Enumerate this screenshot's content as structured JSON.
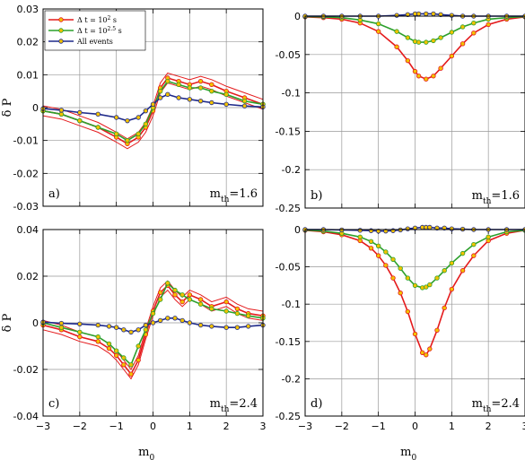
{
  "chart_data": [
    {
      "id": "a",
      "type": "line",
      "panel_label": "a)",
      "threshold_label": "m_th=1.6",
      "ylabel": "δ P",
      "xlabel": "",
      "xlim": [
        -3,
        3
      ],
      "ylim": [
        -0.03,
        0.03
      ],
      "yticks": [
        "0.03",
        "0.02",
        "0.01",
        "0",
        "-0.01",
        "-0.02",
        "-0.03"
      ],
      "xticks": [],
      "grid": true,
      "legend": {
        "position": "top-left",
        "entries": [
          {
            "label": "Δ t = 10^2 s",
            "color": "#e41a1c"
          },
          {
            "label": "Δ t = 10^2.5 s",
            "color": "#2ca02c"
          },
          {
            "label": "All events",
            "color": "#1f2a8a"
          }
        ]
      },
      "series": [
        {
          "name": "Δ t = 10^2 s",
          "color": "#e41a1c",
          "band": true,
          "x": [
            -3,
            -2.5,
            -2,
            -1.5,
            -1,
            -0.7,
            -0.4,
            -0.2,
            0,
            0.2,
            0.4,
            0.7,
            1,
            1.3,
            1.6,
            2,
            2.5,
            3
          ],
          "y": [
            -0.001,
            -0.002,
            -0.004,
            -0.006,
            -0.009,
            -0.011,
            -0.009,
            -0.006,
            -0.001,
            0.006,
            0.009,
            0.008,
            0.007,
            0.008,
            0.007,
            0.005,
            0.003,
            0.001
          ]
        },
        {
          "name": "Δ t = 10^2.5 s",
          "color": "#2ca02c",
          "band": false,
          "x": [
            -3,
            -2.5,
            -2,
            -1.5,
            -1,
            -0.7,
            -0.4,
            -0.2,
            0,
            0.2,
            0.4,
            0.7,
            1,
            1.3,
            1.6,
            2,
            2.5,
            3
          ],
          "y": [
            -0.001,
            -0.002,
            -0.004,
            -0.006,
            -0.008,
            -0.01,
            -0.008,
            -0.005,
            0,
            0.005,
            0.008,
            0.007,
            0.006,
            0.006,
            0.005,
            0.004,
            0.002,
            0.001
          ]
        },
        {
          "name": "All events",
          "color": "#1f2a8a",
          "band": false,
          "x": [
            -3,
            -2.5,
            -2,
            -1.5,
            -1,
            -0.7,
            -0.4,
            -0.2,
            0,
            0.2,
            0.4,
            0.7,
            1,
            1.3,
            1.6,
            2,
            2.5,
            3
          ],
          "y": [
            -0.0003,
            -0.0008,
            -0.0015,
            -0.002,
            -0.003,
            -0.004,
            -0.003,
            -0.001,
            0.001,
            0.003,
            0.004,
            0.003,
            0.0025,
            0.002,
            0.0015,
            0.001,
            0.0005,
            0.0002
          ]
        }
      ]
    },
    {
      "id": "b",
      "type": "line",
      "panel_label": "b)",
      "threshold_label": "m_th=1.6",
      "ylabel": "",
      "xlabel": "",
      "xlim": [
        -3,
        3
      ],
      "ylim": [
        -0.25,
        0.0
      ],
      "yticks": [
        "0",
        "-0.05",
        "-0.1",
        "-0.15",
        "-0.2",
        "-0.25"
      ],
      "xticks": [],
      "grid": true,
      "series": [
        {
          "name": "Δ t = 10^2 s",
          "color": "#e41a1c",
          "band": false,
          "x": [
            -3,
            -2.5,
            -2,
            -1.5,
            -1,
            -0.5,
            -0.2,
            0,
            0.1,
            0.3,
            0.5,
            0.7,
            1,
            1.3,
            1.6,
            2,
            2.5,
            3
          ],
          "y": [
            -0.001,
            -0.002,
            -0.004,
            -0.009,
            -0.02,
            -0.04,
            -0.058,
            -0.072,
            -0.078,
            -0.082,
            -0.078,
            -0.068,
            -0.052,
            -0.036,
            -0.022,
            -0.011,
            -0.004,
            -0.001
          ]
        },
        {
          "name": "Δ t = 10^2.5 s",
          "color": "#2ca02c",
          "band": false,
          "x": [
            -3,
            -2.5,
            -2,
            -1.5,
            -1,
            -0.5,
            -0.2,
            0,
            0.1,
            0.3,
            0.5,
            0.7,
            1,
            1.3,
            1.6,
            2,
            2.5,
            3
          ],
          "y": [
            -0.0005,
            -0.001,
            -0.002,
            -0.005,
            -0.01,
            -0.02,
            -0.028,
            -0.033,
            -0.034,
            -0.034,
            -0.032,
            -0.028,
            -0.021,
            -0.014,
            -0.009,
            -0.004,
            -0.002,
            -0.0005
          ]
        },
        {
          "name": "All events",
          "color": "#1f2a8a",
          "band": false,
          "x": [
            -3,
            -2.5,
            -2,
            -1.5,
            -1,
            -0.5,
            -0.2,
            0,
            0.1,
            0.3,
            0.5,
            0.7,
            1,
            1.3,
            1.6,
            2,
            2.5,
            3
          ],
          "y": [
            0,
            0,
            0,
            0,
            0,
            0.001,
            0.002,
            0.003,
            0.003,
            0.003,
            0.003,
            0.002,
            0.001,
            0,
            0,
            0,
            0,
            0
          ]
        }
      ]
    },
    {
      "id": "c",
      "type": "line",
      "panel_label": "c)",
      "threshold_label": "m_th=2.4",
      "ylabel": "δ P",
      "xlabel": "m_0",
      "xlim": [
        -3,
        3
      ],
      "ylim": [
        -0.04,
        0.04
      ],
      "yticks": [
        "0.04",
        "0.02",
        "0",
        "-0.02",
        "-0.04"
      ],
      "xticks": [
        "−3",
        "−2",
        "−1",
        "0",
        "1",
        "2",
        "3"
      ],
      "grid": true,
      "series": [
        {
          "name": "Δ t = 10^2 s",
          "color": "#e41a1c",
          "band": true,
          "x": [
            -3,
            -2.5,
            -2,
            -1.5,
            -1.2,
            -1,
            -0.8,
            -0.6,
            -0.4,
            -0.2,
            0,
            0.2,
            0.4,
            0.6,
            0.8,
            1,
            1.3,
            1.6,
            2,
            2.3,
            2.6,
            3
          ],
          "y": [
            -0.001,
            -0.003,
            -0.006,
            -0.008,
            -0.011,
            -0.014,
            -0.018,
            -0.022,
            -0.016,
            -0.005,
            0.005,
            0.013,
            0.016,
            0.012,
            0.009,
            0.012,
            0.01,
            0.007,
            0.009,
            0.006,
            0.004,
            0.003
          ]
        },
        {
          "name": "Δ t = 10^2.5 s",
          "color": "#2ca02c",
          "band": false,
          "x": [
            -3,
            -2.5,
            -2,
            -1.5,
            -1.2,
            -1,
            -0.8,
            -0.6,
            -0.4,
            -0.2,
            0,
            0.2,
            0.4,
            0.6,
            0.8,
            1,
            1.3,
            1.6,
            2,
            2.3,
            2.6,
            3
          ],
          "y": [
            0,
            -0.002,
            -0.004,
            -0.006,
            -0.009,
            -0.012,
            -0.015,
            -0.018,
            -0.01,
            -0.003,
            0.004,
            0.01,
            0.017,
            0.014,
            0.012,
            0.01,
            0.008,
            0.006,
            0.005,
            0.004,
            0.003,
            0.002
          ]
        },
        {
          "name": "All events",
          "color": "#1f2a8a",
          "band": false,
          "x": [
            -3,
            -2.5,
            -2,
            -1.5,
            -1.2,
            -1,
            -0.8,
            -0.6,
            -0.4,
            -0.2,
            0,
            0.2,
            0.4,
            0.6,
            0.8,
            1,
            1.3,
            1.6,
            2,
            2.3,
            2.6,
            3
          ],
          "y": [
            0.0003,
            -0.0002,
            -0.0005,
            -0.001,
            -0.0015,
            -0.002,
            -0.003,
            -0.004,
            -0.003,
            -0.001,
            0,
            0.001,
            0.002,
            0.002,
            0.001,
            0,
            -0.001,
            -0.0015,
            -0.002,
            -0.002,
            -0.0015,
            -0.001
          ]
        }
      ]
    },
    {
      "id": "d",
      "type": "line",
      "panel_label": "d)",
      "threshold_label": "m_th=2.4",
      "ylabel": "",
      "xlabel": "m_0",
      "xlim": [
        -3,
        3
      ],
      "ylim": [
        -0.25,
        0.0
      ],
      "yticks": [
        "0",
        "-0.05",
        "-0.1",
        "-0.15",
        "-0.2",
        "-0.25"
      ],
      "xticks": [
        "−3",
        "−2",
        "−1",
        "0",
        "1",
        "2",
        "3"
      ],
      "grid": true,
      "series": [
        {
          "name": "Δ t = 10^2 s",
          "color": "#e41a1c",
          "band": false,
          "x": [
            -3,
            -2.5,
            -2,
            -1.5,
            -1.2,
            -1,
            -0.8,
            -0.6,
            -0.4,
            -0.2,
            0,
            0.2,
            0.3,
            0.4,
            0.6,
            0.8,
            1,
            1.3,
            1.6,
            2,
            2.5,
            3
          ],
          "y": [
            -0.001,
            -0.003,
            -0.007,
            -0.015,
            -0.025,
            -0.035,
            -0.048,
            -0.065,
            -0.085,
            -0.11,
            -0.14,
            -0.165,
            -0.168,
            -0.16,
            -0.135,
            -0.105,
            -0.08,
            -0.055,
            -0.035,
            -0.015,
            -0.005,
            -0.001
          ]
        },
        {
          "name": "Δ t = 10^2.5 s",
          "color": "#2ca02c",
          "band": false,
          "x": [
            -3,
            -2.5,
            -2,
            -1.5,
            -1.2,
            -1,
            -0.8,
            -0.6,
            -0.4,
            -0.2,
            0,
            0.2,
            0.3,
            0.4,
            0.6,
            0.8,
            1,
            1.3,
            1.6,
            2,
            2.5,
            3
          ],
          "y": [
            -0.0005,
            -0.002,
            -0.005,
            -0.01,
            -0.016,
            -0.022,
            -0.03,
            -0.04,
            -0.052,
            -0.065,
            -0.075,
            -0.078,
            -0.077,
            -0.074,
            -0.065,
            -0.055,
            -0.045,
            -0.032,
            -0.02,
            -0.01,
            -0.003,
            -0.001
          ]
        },
        {
          "name": "All events",
          "color": "#1f2a8a",
          "band": false,
          "x": [
            -3,
            -2.5,
            -2,
            -1.5,
            -1.2,
            -1,
            -0.8,
            -0.6,
            -0.4,
            -0.2,
            0,
            0.2,
            0.3,
            0.4,
            0.6,
            0.8,
            1,
            1.3,
            1.6,
            2,
            2.5,
            3
          ],
          "y": [
            0,
            0,
            -0.0005,
            -0.001,
            -0.0015,
            -0.002,
            -0.002,
            -0.0015,
            -0.0005,
            0.001,
            0.002,
            0.003,
            0.003,
            0.003,
            0.002,
            0.002,
            0.001,
            0.0005,
            0,
            0,
            0,
            0
          ]
        }
      ]
    }
  ]
}
